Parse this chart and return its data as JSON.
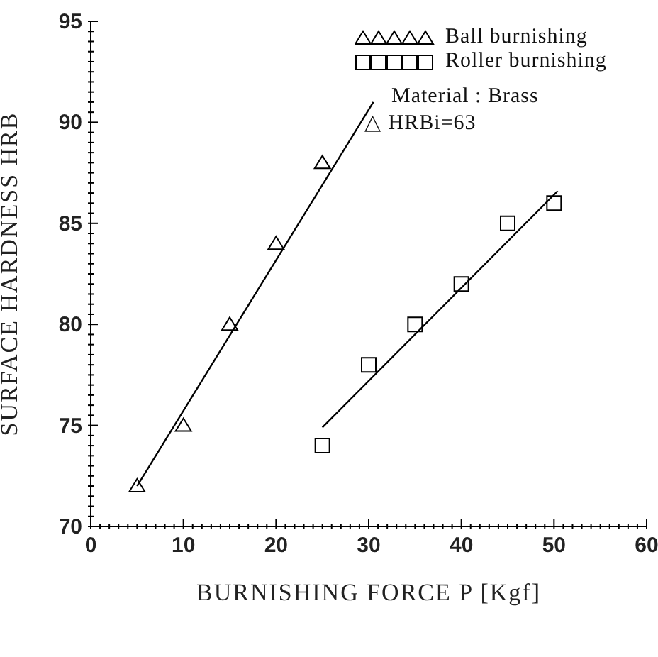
{
  "chart_data": {
    "type": "scatter",
    "xlabel": "BURNISHING FORCE P [Kgf]",
    "ylabel": "SURFACE HARDNESS HRB",
    "xlim": [
      0,
      60
    ],
    "ylim": [
      70,
      95
    ],
    "xticks": [
      0,
      {
        "value": 1,
        "label": null
      },
      {
        "value": 2,
        "label": null
      },
      {
        "value": 3,
        "label": null
      },
      {
        "value": 4,
        "label": null
      },
      {
        "value": 5,
        "label": null
      },
      {
        "value": 6,
        "label": null
      },
      {
        "value": 7,
        "label": null
      },
      {
        "value": 8,
        "label": null
      },
      {
        "value": 9,
        "label": null
      },
      10,
      {
        "value": 11,
        "label": null
      },
      {
        "value": 12,
        "label": null
      },
      {
        "value": 13,
        "label": null
      },
      {
        "value": 14,
        "label": null
      },
      {
        "value": 15,
        "label": null
      },
      {
        "value": 16,
        "label": null
      },
      {
        "value": 17,
        "label": null
      },
      {
        "value": 18,
        "label": null
      },
      {
        "value": 19,
        "label": null
      },
      20,
      {
        "value": 21,
        "label": null
      },
      {
        "value": 22,
        "label": null
      },
      {
        "value": 23,
        "label": null
      },
      {
        "value": 24,
        "label": null
      },
      {
        "value": 25,
        "label": null
      },
      {
        "value": 26,
        "label": null
      },
      {
        "value": 27,
        "label": null
      },
      {
        "value": 28,
        "label": null
      },
      {
        "value": 29,
        "label": null
      },
      30,
      {
        "value": 31,
        "label": null
      },
      {
        "value": 32,
        "label": null
      },
      {
        "value": 33,
        "label": null
      },
      {
        "value": 34,
        "label": null
      },
      {
        "value": 35,
        "label": null
      },
      {
        "value": 36,
        "label": null
      },
      {
        "value": 37,
        "label": null
      },
      {
        "value": 38,
        "label": null
      },
      {
        "value": 39,
        "label": null
      },
      40,
      {
        "value": 41,
        "label": null
      },
      {
        "value": 42,
        "label": null
      },
      {
        "value": 43,
        "label": null
      },
      {
        "value": 44,
        "label": null
      },
      {
        "value": 45,
        "label": null
      },
      {
        "value": 46,
        "label": null
      },
      {
        "value": 47,
        "label": null
      },
      {
        "value": 48,
        "label": null
      },
      {
        "value": 49,
        "label": null
      },
      50,
      {
        "value": 51,
        "label": null
      },
      {
        "value": 52,
        "label": null
      },
      {
        "value": 53,
        "label": null
      },
      {
        "value": 54,
        "label": null
      },
      {
        "value": 55,
        "label": null
      },
      {
        "value": 56,
        "label": null
      },
      {
        "value": 57,
        "label": null
      },
      {
        "value": 58,
        "label": null
      },
      {
        "value": 59,
        "label": null
      },
      60
    ],
    "yticks": [
      70,
      {
        "value": 70.5,
        "label": null
      },
      {
        "value": 71,
        "label": null
      },
      {
        "value": 71.5,
        "label": null
      },
      {
        "value": 72,
        "label": null
      },
      {
        "value": 72.5,
        "label": null
      },
      {
        "value": 73,
        "label": null
      },
      {
        "value": 73.5,
        "label": null
      },
      {
        "value": 74,
        "label": null
      },
      {
        "value": 74.5,
        "label": null
      },
      75,
      {
        "value": 75.5,
        "label": null
      },
      {
        "value": 76,
        "label": null
      },
      {
        "value": 76.5,
        "label": null
      },
      {
        "value": 77,
        "label": null
      },
      {
        "value": 77.5,
        "label": null
      },
      {
        "value": 78,
        "label": null
      },
      {
        "value": 78.5,
        "label": null
      },
      {
        "value": 79,
        "label": null
      },
      {
        "value": 79.5,
        "label": null
      },
      80,
      {
        "value": 80.5,
        "label": null
      },
      {
        "value": 81,
        "label": null
      },
      {
        "value": 81.5,
        "label": null
      },
      {
        "value": 82,
        "label": null
      },
      {
        "value": 82.5,
        "label": null
      },
      {
        "value": 83,
        "label": null
      },
      {
        "value": 83.5,
        "label": null
      },
      {
        "value": 84,
        "label": null
      },
      {
        "value": 84.5,
        "label": null
      },
      85,
      {
        "value": 85.5,
        "label": null
      },
      {
        "value": 86,
        "label": null
      },
      {
        "value": 86.5,
        "label": null
      },
      {
        "value": 87,
        "label": null
      },
      {
        "value": 87.5,
        "label": null
      },
      {
        "value": 88,
        "label": null
      },
      {
        "value": 88.5,
        "label": null
      },
      {
        "value": 89,
        "label": null
      },
      {
        "value": 89.5,
        "label": null
      },
      90,
      {
        "value": 90.5,
        "label": null
      },
      {
        "value": 91,
        "label": null
      },
      {
        "value": 91.5,
        "label": null
      },
      {
        "value": 92,
        "label": null
      },
      {
        "value": 92.5,
        "label": null
      },
      {
        "value": 93,
        "label": null
      },
      {
        "value": 93.5,
        "label": null
      },
      {
        "value": 94,
        "label": null
      },
      {
        "value": 94.5,
        "label": null
      },
      95
    ],
    "legend": "top right",
    "annotations": [
      "Material : Brass",
      "△ HRBi=63"
    ],
    "series": [
      {
        "name": "Ball burnishing",
        "type": "scatter",
        "marker": "triangle",
        "color": "#000000",
        "x": [
          5,
          10,
          15,
          20,
          25
        ],
        "values": [
          72,
          75,
          80,
          84,
          88
        ]
      },
      {
        "name": "Roller burnishing",
        "type": "scatter",
        "marker": "square",
        "color": "#000000",
        "x": [
          25,
          30,
          35,
          40,
          45,
          50
        ],
        "values": [
          74,
          78,
          80,
          82,
          85,
          86
        ]
      },
      {
        "type": "line",
        "marker": "none",
        "color": "#000000",
        "x": [
          5,
          30.5
        ],
        "values": [
          72,
          91
        ]
      },
      {
        "type": "line",
        "marker": "none",
        "color": "#000000",
        "x": [
          25,
          50.4
        ],
        "values": [
          74.9,
          86.6
        ]
      }
    ]
  }
}
